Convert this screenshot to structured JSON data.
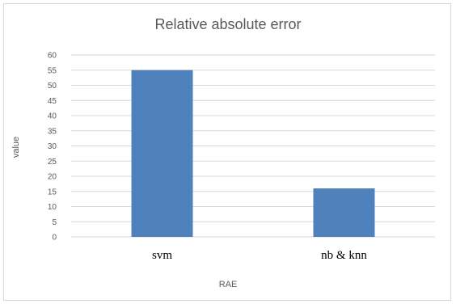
{
  "chart_data": {
    "type": "bar",
    "title": "Relative absolute error",
    "xlabel": "RAE",
    "ylabel": "value",
    "categories": [
      "svm",
      "nb & knn"
    ],
    "values": [
      55,
      16
    ],
    "yticks": [
      "0",
      "5",
      "10",
      "15",
      "20",
      "25",
      "30",
      "35",
      "40",
      "45",
      "50",
      "55",
      "60"
    ],
    "ylim": [
      0,
      60
    ],
    "grid": true,
    "bar_color": "#4f81bd",
    "grid_color": "#d9d9d9"
  }
}
